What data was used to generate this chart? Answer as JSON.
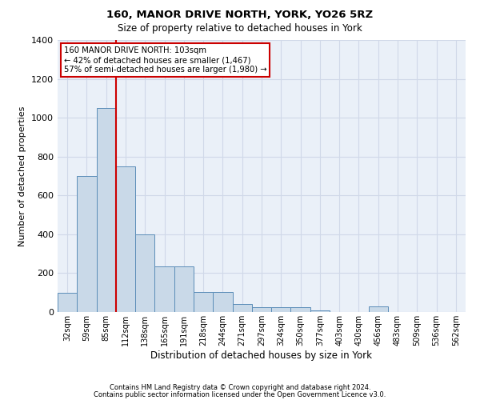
{
  "title1": "160, MANOR DRIVE NORTH, YORK, YO26 5RZ",
  "title2": "Size of property relative to detached houses in York",
  "xlabel": "Distribution of detached houses by size in York",
  "ylabel": "Number of detached properties",
  "categories": [
    "32sqm",
    "59sqm",
    "85sqm",
    "112sqm",
    "138sqm",
    "165sqm",
    "191sqm",
    "218sqm",
    "244sqm",
    "271sqm",
    "297sqm",
    "324sqm",
    "350sqm",
    "377sqm",
    "403sqm",
    "430sqm",
    "456sqm",
    "483sqm",
    "509sqm",
    "536sqm",
    "562sqm"
  ],
  "values": [
    100,
    700,
    1050,
    750,
    400,
    235,
    235,
    105,
    105,
    40,
    25,
    25,
    25,
    10,
    0,
    0,
    30,
    0,
    0,
    0,
    0
  ],
  "bar_color": "#c9d9e8",
  "bar_edge_color": "#5b8db8",
  "grid_color": "#d0d8e8",
  "background_color": "#eaf0f8",
  "vline_x": 2.5,
  "vline_color": "#cc0000",
  "annotation_text": "160 MANOR DRIVE NORTH: 103sqm\n← 42% of detached houses are smaller (1,467)\n57% of semi-detached houses are larger (1,980) →",
  "annotation_box_color": "#ffffff",
  "annotation_box_edge": "#cc0000",
  "ylim": [
    0,
    1400
  ],
  "yticks": [
    0,
    200,
    400,
    600,
    800,
    1000,
    1200,
    1400
  ],
  "footer1": "Contains HM Land Registry data © Crown copyright and database right 2024.",
  "footer2": "Contains public sector information licensed under the Open Government Licence v3.0."
}
